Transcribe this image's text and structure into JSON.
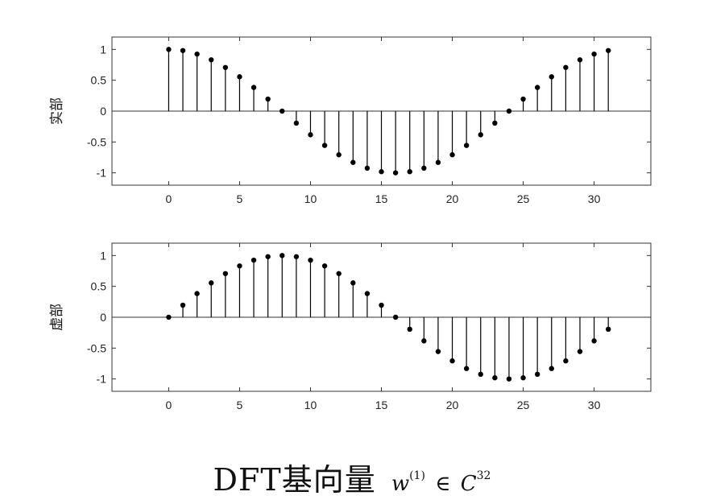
{
  "chart_data": [
    {
      "type": "stem",
      "ylabel": "实部",
      "xlim": [
        -4,
        34
      ],
      "ylim": [
        -1.2,
        1.2
      ],
      "x_ticks": [
        "0",
        "5",
        "10",
        "15",
        "20",
        "25",
        "30"
      ],
      "y_ticks": [
        "1",
        "0.5",
        "0",
        "-0.5",
        "-1"
      ],
      "x": [
        0,
        1,
        2,
        3,
        4,
        5,
        6,
        7,
        8,
        9,
        10,
        11,
        12,
        13,
        14,
        15,
        16,
        17,
        18,
        19,
        20,
        21,
        22,
        23,
        24,
        25,
        26,
        27,
        28,
        29,
        30,
        31
      ],
      "values": [
        1.0,
        0.981,
        0.924,
        0.831,
        0.707,
        0.556,
        0.383,
        0.195,
        0.0,
        -0.195,
        -0.383,
        -0.556,
        -0.707,
        -0.831,
        -0.924,
        -0.981,
        -1.0,
        -0.981,
        -0.924,
        -0.831,
        -0.707,
        -0.556,
        -0.383,
        -0.195,
        0.0,
        0.195,
        0.383,
        0.556,
        0.707,
        0.831,
        0.924,
        0.981
      ]
    },
    {
      "type": "stem",
      "ylabel": "虚部",
      "xlim": [
        -4,
        34
      ],
      "ylim": [
        -1.2,
        1.2
      ],
      "x_ticks": [
        "0",
        "5",
        "10",
        "15",
        "20",
        "25",
        "30"
      ],
      "y_ticks": [
        "1",
        "0.5",
        "0",
        "-0.5",
        "-1"
      ],
      "x": [
        0,
        1,
        2,
        3,
        4,
        5,
        6,
        7,
        8,
        9,
        10,
        11,
        12,
        13,
        14,
        15,
        16,
        17,
        18,
        19,
        20,
        21,
        22,
        23,
        24,
        25,
        26,
        27,
        28,
        29,
        30,
        31
      ],
      "values": [
        0.0,
        0.195,
        0.383,
        0.556,
        0.707,
        0.831,
        0.924,
        0.981,
        1.0,
        0.981,
        0.924,
        0.831,
        0.707,
        0.556,
        0.383,
        0.195,
        0.0,
        -0.195,
        -0.383,
        -0.556,
        -0.707,
        -0.831,
        -0.924,
        -0.981,
        -1.0,
        -0.981,
        -0.924,
        -0.831,
        -0.707,
        -0.556,
        -0.383,
        -0.195
      ]
    }
  ],
  "caption": {
    "main": "DFT基向量",
    "w": "w",
    "sup": "(1)",
    "rel": "∈",
    "space": "C",
    "dim": "32"
  },
  "colors": {
    "axis": "#333333",
    "stem": "#000000",
    "marker": "#000000"
  }
}
